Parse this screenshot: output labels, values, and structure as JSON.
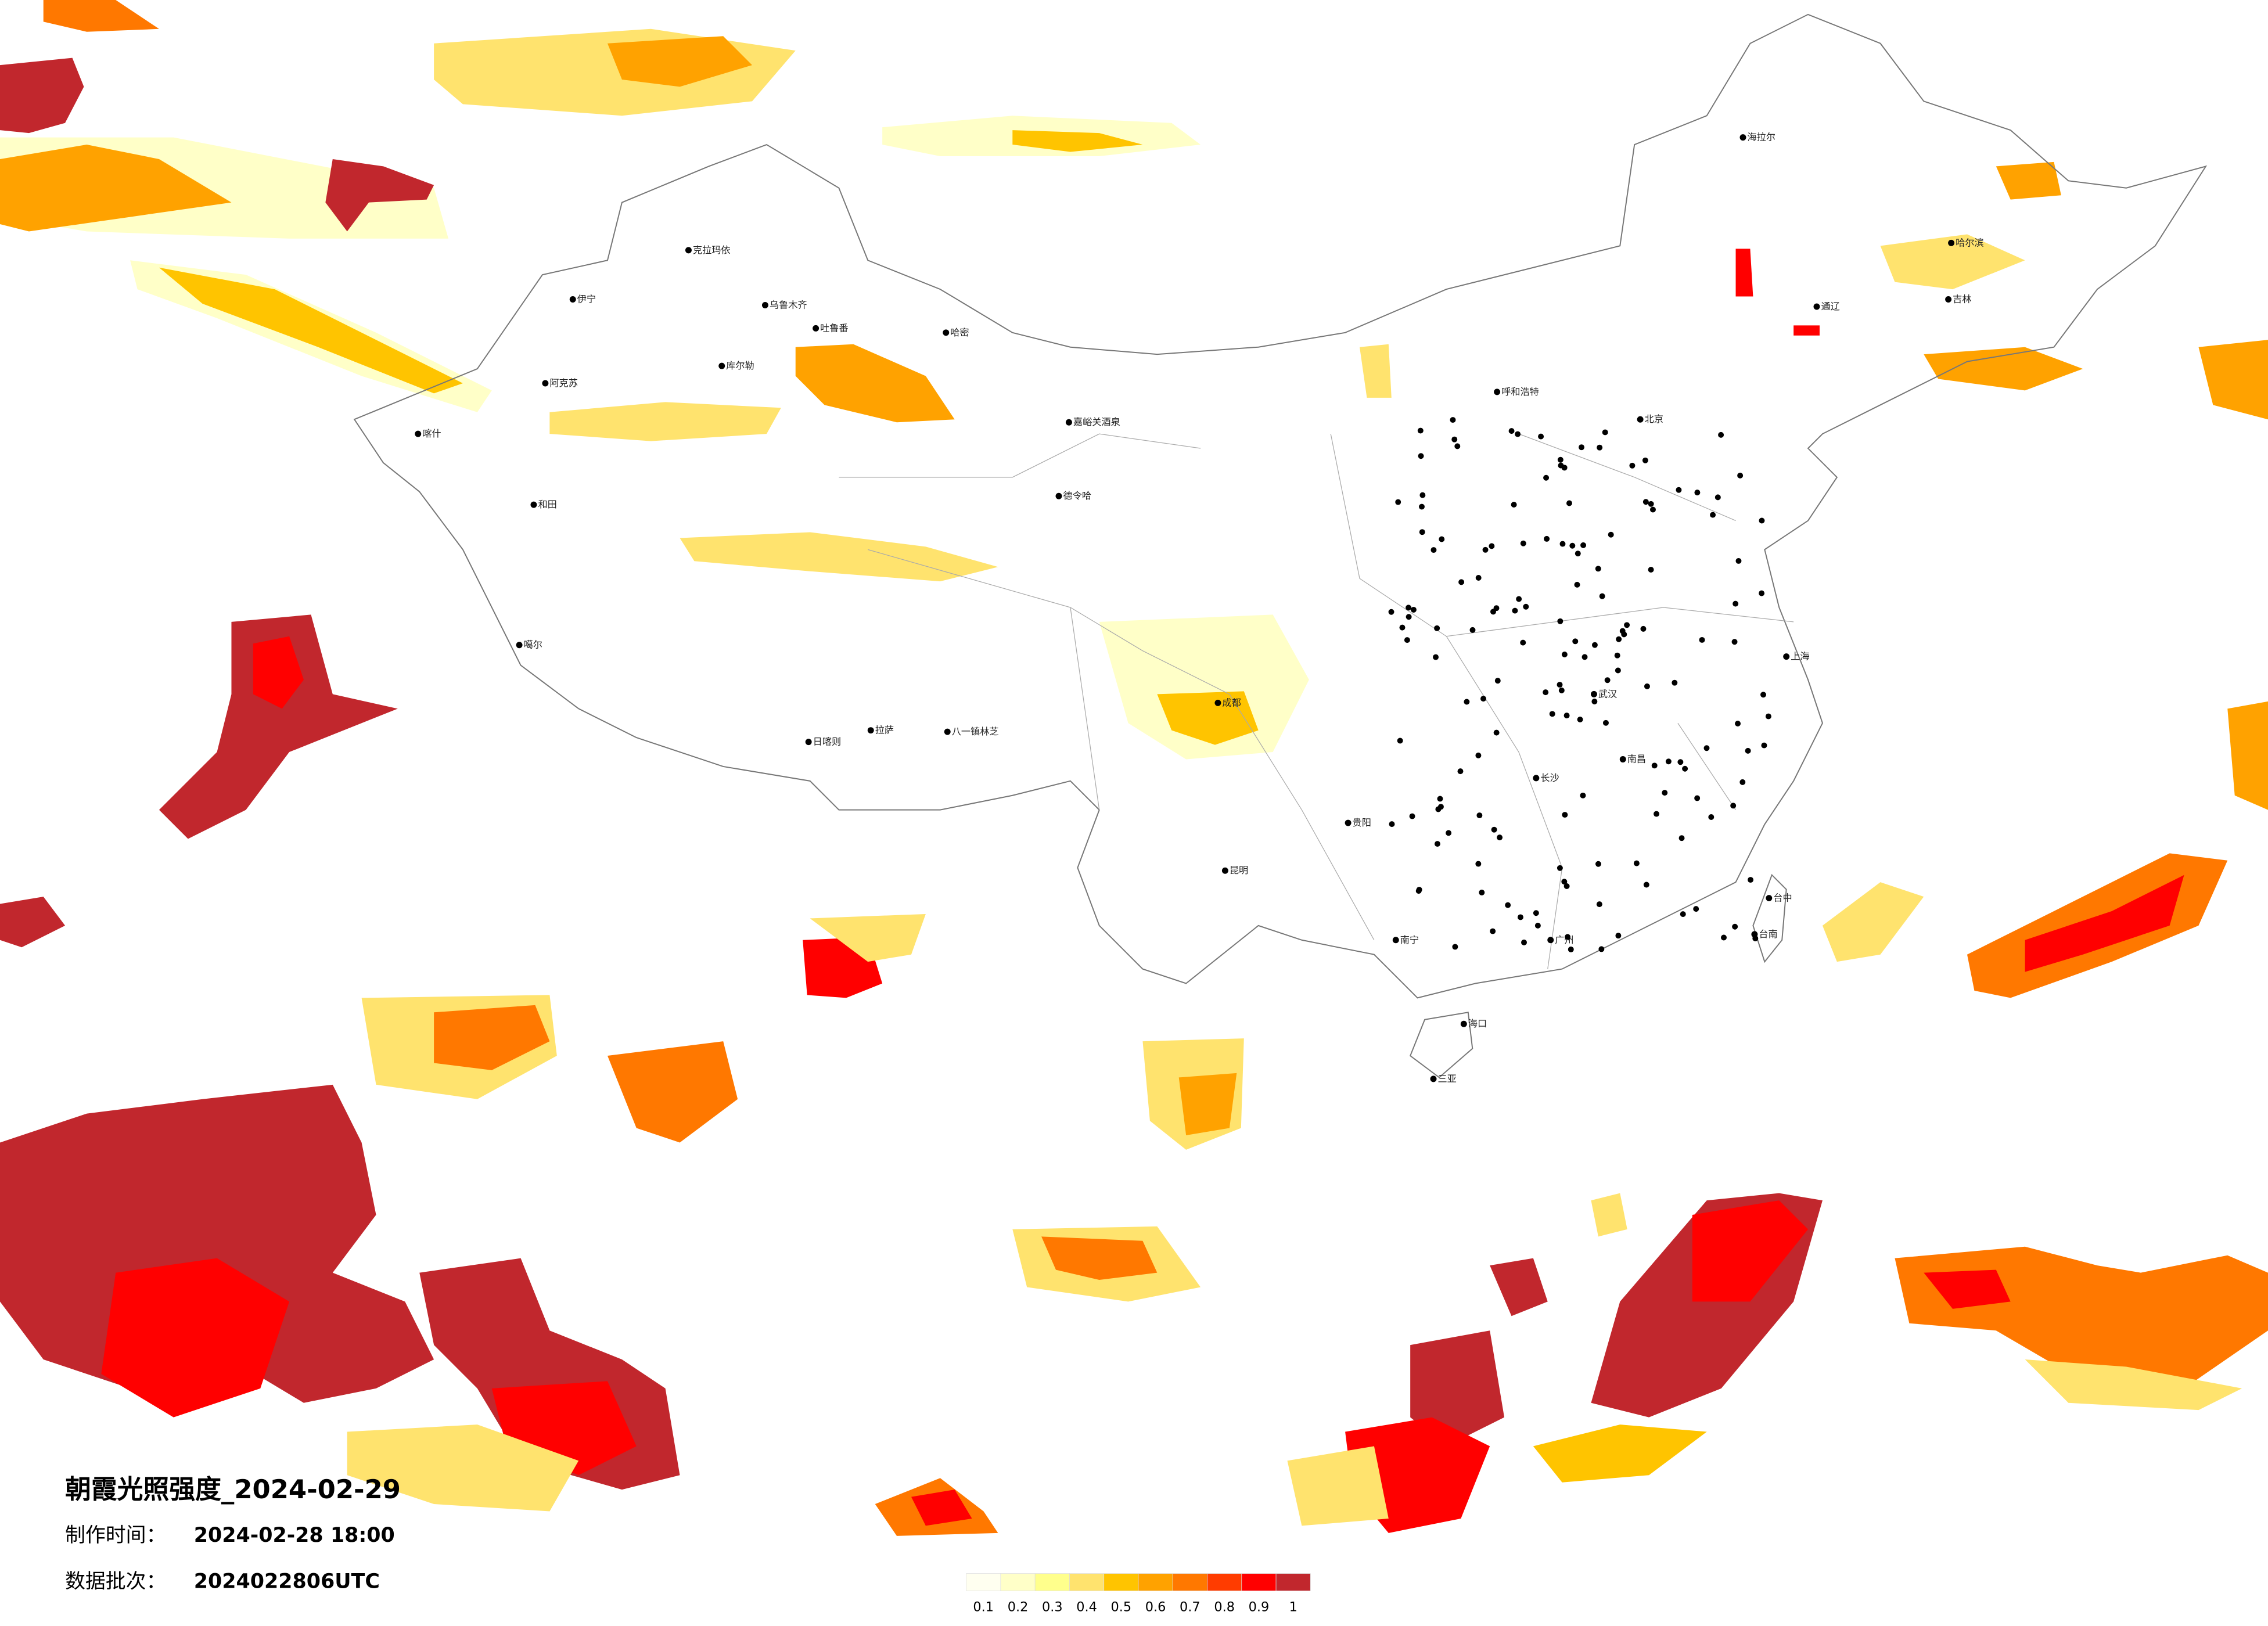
{
  "title": "朝霞光照强度_2024-02-29",
  "production_time": {
    "label": "制作时间：",
    "value": "2024-02-28 18:00"
  },
  "data_batch": {
    "label": "数据批次：",
    "value": "2024022806UTC"
  },
  "legend": {
    "ticks": [
      0.1,
      0.2,
      0.3,
      0.4,
      0.5,
      0.6,
      0.7,
      0.8,
      0.9,
      1
    ],
    "colors": [
      "#fffff0",
      "#ffffc8",
      "#ffff8c",
      "#ffe36e",
      "#ffc400",
      "#ffa200",
      "#ff7800",
      "#ff3c00",
      "#ff0000",
      "#c1272d"
    ]
  },
  "cities": [
    "克拉玛依",
    "乌鲁木齐",
    "吐鲁番",
    "哈密",
    "库尔勒",
    "阿克苏",
    "喀什",
    "伊宁",
    "和田",
    "嘉峪关酒泉",
    "德令哈",
    "噶尔",
    "日喀则",
    "拉萨",
    "八一镇林芝",
    "呼和浩特",
    "北京",
    "哈尔滨",
    "吉林",
    "通辽",
    "海拉尔",
    "成都",
    "昆明",
    "贵阳",
    "南宁",
    "广州",
    "海口",
    "三亚",
    "长沙",
    "南昌",
    "武汉",
    "台中",
    "台南",
    "上海"
  ]
}
